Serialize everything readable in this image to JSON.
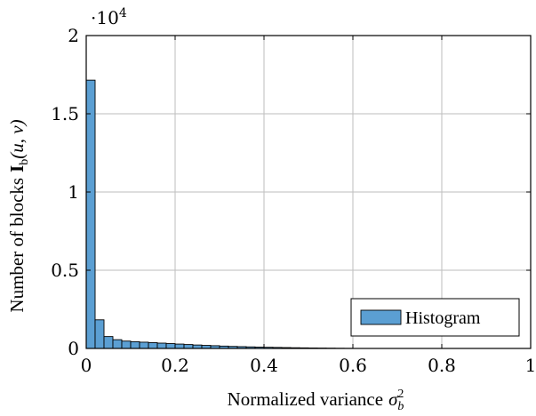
{
  "chart_data": {
    "type": "bar",
    "xlabel": "Normalized variance",
    "xlabel_symbol": "σ",
    "xlabel_sub": "b",
    "xlabel_sup": "2",
    "ylabel": "Number of blocks",
    "ylabel_bold": "I",
    "ylabel_sub": "b",
    "ylabel_args": "(u, v)",
    "y_multiplier_base": "·10",
    "y_multiplier_exp": "4",
    "xlim": [
      0,
      1
    ],
    "ylim": [
      0,
      20000
    ],
    "x_ticks": [
      0,
      0.2,
      0.4,
      0.6,
      0.8,
      1
    ],
    "x_tick_labels": [
      "0",
      "0.2",
      "0.4",
      "0.6",
      "0.8",
      "1"
    ],
    "y_ticks": [
      0,
      5000,
      10000,
      15000,
      20000
    ],
    "y_tick_labels": [
      "0",
      "0.5",
      "1",
      "1.5",
      "2"
    ],
    "grid": true,
    "legend_position": "bottom-right",
    "bin_width": 0.02,
    "bar_color": "#5b9fd3",
    "series": [
      {
        "name": "Histogram",
        "x": [
          0.0,
          0.02,
          0.04,
          0.06,
          0.08,
          0.1,
          0.12,
          0.14,
          0.16,
          0.18,
          0.2,
          0.22,
          0.24,
          0.26,
          0.28,
          0.3,
          0.32,
          0.34,
          0.36,
          0.38,
          0.4,
          0.42,
          0.44,
          0.46,
          0.48,
          0.5,
          0.52,
          0.54,
          0.56,
          0.58
        ],
        "values": [
          17150,
          1830,
          760,
          560,
          470,
          430,
          400,
          370,
          340,
          310,
          280,
          250,
          220,
          195,
          175,
          150,
          130,
          115,
          100,
          85,
          75,
          65,
          55,
          45,
          38,
          30,
          24,
          18,
          12,
          8
        ]
      }
    ]
  }
}
